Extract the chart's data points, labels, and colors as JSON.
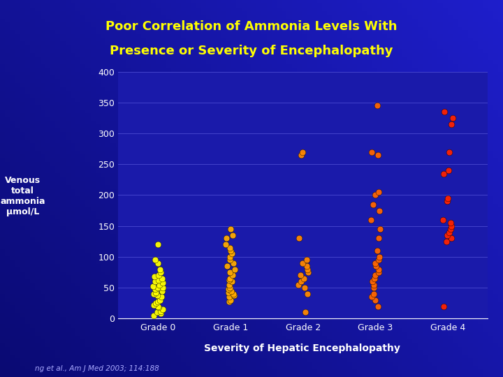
{
  "title_line1": "Poor Correlation of Ammonia Levels With",
  "title_line2": "Presence or Severity of Encephalopathy",
  "xlabel": "Severity of Hepatic Encephalopathy",
  "ylabel": "Venous\ntotal\nammonia\nμmol/L",
  "footnote": "ng et al., Am J Med 2003; 114:188",
  "bg_outer": "#0a0a8a",
  "bg_plot": "#1a1aaa",
  "title_color": "#ffff00",
  "axis_label_color": "#ffffff",
  "tick_label_color": "#ffffff",
  "footnote_color": "#aaaaff",
  "xlabel_color": "#ffffff",
  "grid_color": "#4444cc",
  "ylim": [
    0,
    400
  ],
  "yticks": [
    0,
    50,
    100,
    150,
    200,
    250,
    300,
    350,
    400
  ],
  "categories": [
    "Grade 0",
    "Grade 1",
    "Grade 2",
    "Grade 3",
    "Grade 4"
  ],
  "grade0_color": "#ffff00",
  "grade1_color": "#ffaa00",
  "grade2_color": "#ff8800",
  "grade3_color": "#ff6600",
  "grade4_color": "#ff2200",
  "grade0_data": [
    5,
    8,
    10,
    12,
    15,
    18,
    20,
    22,
    25,
    28,
    30,
    35,
    38,
    40,
    42,
    45,
    48,
    50,
    50,
    52,
    55,
    58,
    60,
    62,
    65,
    68,
    70,
    75,
    80,
    90,
    95,
    120
  ],
  "grade1_data": [
    28,
    30,
    35,
    38,
    40,
    42,
    45,
    48,
    50,
    55,
    60,
    62,
    65,
    70,
    75,
    80,
    85,
    90,
    95,
    100,
    105,
    110,
    115,
    120,
    130,
    135,
    145
  ],
  "grade2_data": [
    10,
    40,
    50,
    55,
    60,
    65,
    70,
    75,
    80,
    85,
    90,
    95,
    130,
    265,
    270
  ],
  "grade3_data": [
    20,
    30,
    35,
    40,
    50,
    55,
    60,
    65,
    70,
    75,
    80,
    85,
    90,
    95,
    100,
    110,
    130,
    145,
    160,
    175,
    185,
    200,
    205,
    265,
    270,
    345
  ],
  "grade4_data": [
    20,
    125,
    130,
    135,
    140,
    145,
    150,
    155,
    160,
    190,
    195,
    235,
    240,
    270,
    315,
    325,
    335
  ]
}
